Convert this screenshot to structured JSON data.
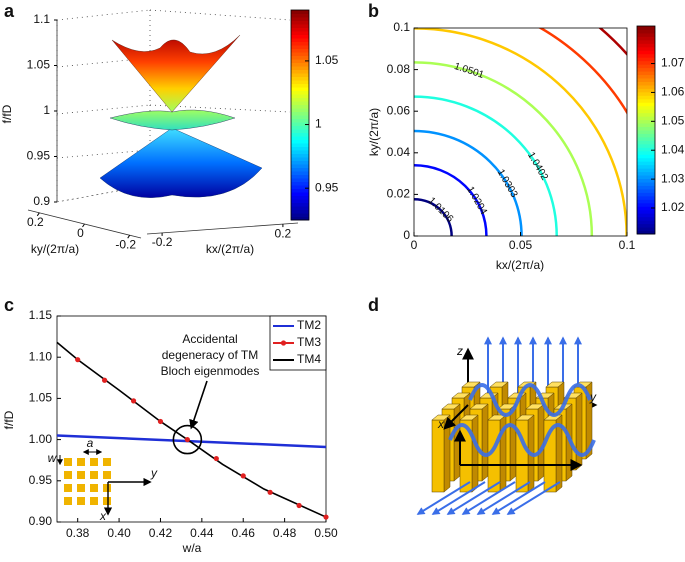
{
  "chart_data": [
    {
      "type": "surface",
      "panel_label": "a",
      "z_label": "f/fD",
      "x_label": "kx/(2π/a)",
      "y_label": "ky/(2π/a)",
      "zlim": [
        0.9,
        1.1
      ],
      "zticks": [
        0.9,
        0.95,
        1,
        1.05,
        1.1
      ],
      "xlim": [
        -0.25,
        0.25
      ],
      "xticks": [
        -0.2,
        0.2
      ],
      "ylim": [
        -0.25,
        0.25
      ],
      "yticks": [
        0.2,
        0,
        -0.2
      ],
      "clim": [
        0.925,
        1.09
      ],
      "cticks": [
        0.95,
        1,
        1.05
      ]
    },
    {
      "type": "contour",
      "panel_label": "b",
      "x_label": "kx/(2π/a)",
      "y_label": "ky/(2π/a)",
      "xlim": [
        0,
        0.1
      ],
      "ylim": [
        0,
        0.1
      ],
      "xticks": [
        0,
        0.05,
        0.1
      ],
      "yticks": [
        0,
        0.02,
        0.04,
        0.06,
        0.08,
        0.1
      ],
      "levels": [
        1.0106,
        1.0204,
        1.0303,
        1.0402,
        1.0501,
        1.0599,
        1.0698,
        1.0797
      ],
      "clim": [
        1.011,
        1.083
      ],
      "cticks": [
        1.02,
        1.03,
        1.04,
        1.05,
        1.06,
        1.07
      ]
    },
    {
      "type": "line",
      "panel_label": "c",
      "x_label": "w/a",
      "y_label": "f/fD",
      "xlim": [
        0.37,
        0.5
      ],
      "xticks": [
        0.38,
        {
          "value": 0.4,
          "label": "0.40"
        },
        0.42,
        0.44,
        0.46,
        0.48,
        {
          "value": 0.5,
          "label": "0.50"
        }
      ],
      "ylim": [
        0.9,
        1.15
      ],
      "yticks": [
        {
          "value": 0.9,
          "label": "0.90"
        },
        {
          "value": 0.95,
          "label": "0.95"
        },
        {
          "value": 1,
          "label": "1.00"
        },
        {
          "value": 1.05,
          "label": "1.05"
        },
        {
          "value": 1.1,
          "label": "1.10"
        },
        {
          "value": 1.15,
          "label": "1.15"
        }
      ],
      "legend": "upper right",
      "series": [
        {
          "name": "TM2",
          "color": "#1f2fd6",
          "x": [
            0.37,
            0.5
          ],
          "values": [
            1.005,
            0.991
          ],
          "style": "line"
        },
        {
          "name": "TM3",
          "color": "#e02020",
          "x": [
            0.38,
            0.393,
            0.407,
            0.42,
            0.433,
            0.447,
            0.46,
            0.473,
            0.487,
            0.5
          ],
          "values": [
            1.097,
            1.072,
            1.047,
            1.022,
            1.0,
            0.977,
            0.956,
            0.936,
            0.92,
            0.906
          ],
          "style": "markers"
        },
        {
          "name": "TM4",
          "color": "#000000",
          "x": [
            0.37,
            0.38,
            0.4,
            0.42,
            0.433,
            0.45,
            0.47,
            0.5
          ],
          "values": [
            1.118,
            1.097,
            1.06,
            1.022,
            1.0,
            0.97,
            0.94,
            0.906
          ],
          "style": "line"
        }
      ],
      "annotation": {
        "lines": [
          "Accidental",
          "degeneracy of TM",
          "Bloch eigenmodes"
        ],
        "x": 0.433,
        "y": 1.0
      },
      "inset": {
        "labels": [
          "a",
          "w",
          "y",
          "x"
        ]
      }
    }
  ],
  "diagram": {
    "panel_label": "d",
    "axis_labels": [
      "z",
      "y",
      "x"
    ]
  }
}
